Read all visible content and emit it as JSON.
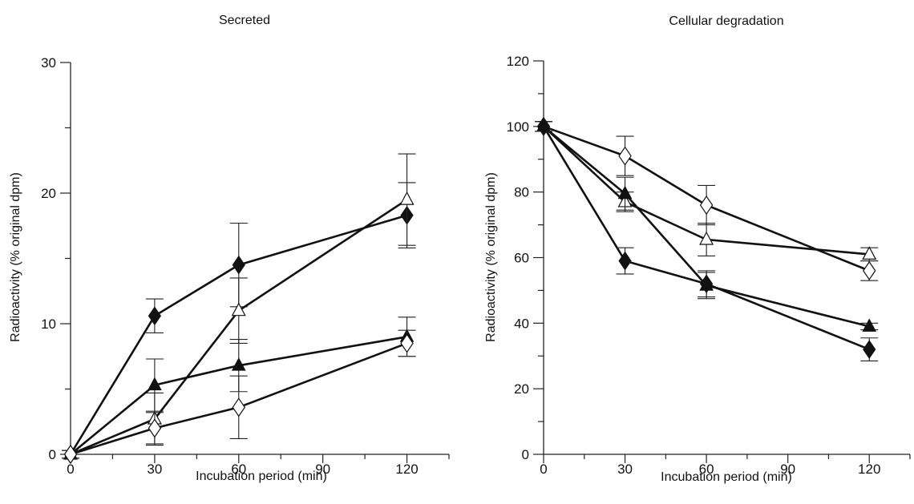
{
  "chart_data": [
    {
      "type": "line",
      "title": "Secreted",
      "xlabel": "Incubation period (min)",
      "ylabel": "Radioactivity (% original dpm)",
      "xlim": [
        0,
        135
      ],
      "ylim": [
        0,
        30
      ],
      "xticks": [
        0,
        30,
        60,
        90,
        120
      ],
      "yticks": [
        0,
        10,
        20,
        30
      ],
      "x": [
        0,
        30,
        60,
        120
      ],
      "grid": false,
      "legend": "none",
      "series": [
        {
          "marker": "filled-diamond",
          "values": [
            0,
            10.6,
            14.5,
            18.3
          ],
          "errors": [
            0.3,
            1.3,
            3.2,
            2.5
          ]
        },
        {
          "marker": "open-triangle",
          "values": [
            0,
            2.7,
            11.0,
            19.5
          ],
          "errors": [
            0.3,
            2.0,
            2.5,
            3.5
          ]
        },
        {
          "marker": "filled-triangle",
          "values": [
            0,
            5.3,
            6.8,
            9.0
          ],
          "errors": [
            0.3,
            2.0,
            2.0,
            1.5
          ]
        },
        {
          "marker": "open-diamond",
          "values": [
            0,
            2.0,
            3.6,
            8.5
          ],
          "errors": [
            0.3,
            1.2,
            2.4,
            1.0
          ]
        }
      ]
    },
    {
      "type": "line",
      "title": "Cellular degradation",
      "xlabel": "Incubation period (min)",
      "ylabel": "Radioactivity (% original dpm)",
      "xlim": [
        0,
        135
      ],
      "ylim": [
        0,
        120
      ],
      "xticks": [
        0,
        30,
        60,
        90,
        120
      ],
      "yticks": [
        0,
        20,
        40,
        60,
        80,
        100,
        120
      ],
      "x": [
        0,
        30,
        60,
        120
      ],
      "grid": false,
      "legend": "none",
      "series": [
        {
          "marker": "open-diamond",
          "values": [
            100,
            91,
            76,
            56
          ],
          "errors": [
            1.5,
            6,
            6,
            3
          ]
        },
        {
          "marker": "open-triangle",
          "values": [
            100,
            77,
            65.5,
            61
          ],
          "errors": [
            1.5,
            3,
            5,
            2
          ]
        },
        {
          "marker": "filled-triangle",
          "values": [
            100,
            79.5,
            51.5,
            39
          ],
          "errors": [
            1.5,
            5,
            4,
            1
          ]
        },
        {
          "marker": "filled-diamond",
          "values": [
            100,
            59,
            52,
            32
          ],
          "errors": [
            1.5,
            4,
            4,
            3.5
          ]
        }
      ]
    }
  ]
}
